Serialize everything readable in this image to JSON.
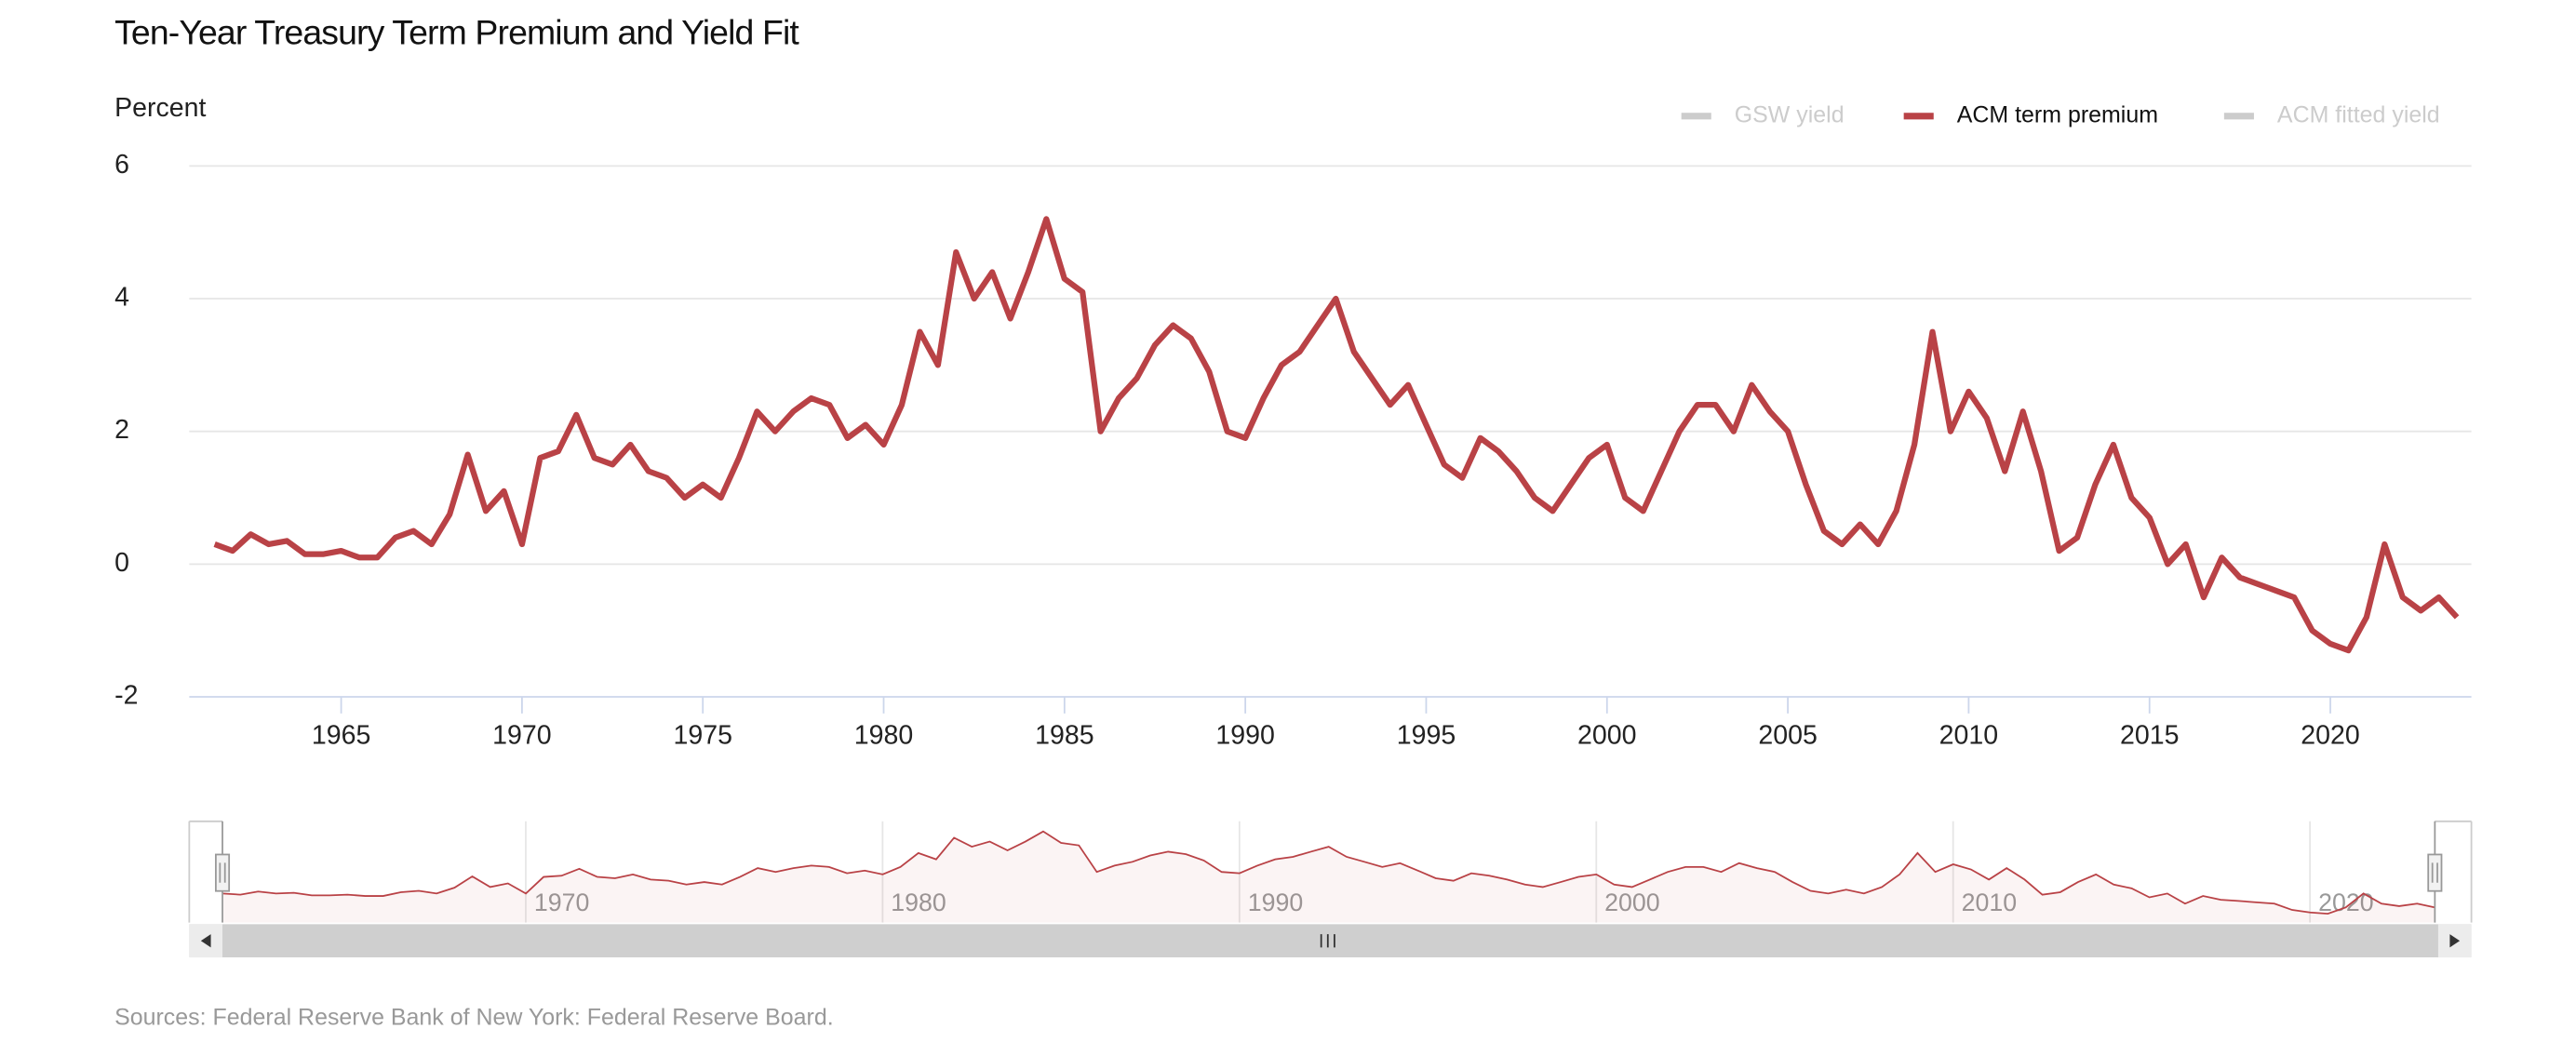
{
  "chart_data": {
    "type": "line",
    "title": "Ten-Year Treasury Term Premium and Yield Fit",
    "ylabel": "Percent",
    "source": "Sources: Federal Reserve Bank of New York: Federal Reserve Board.",
    "xlim": [
      1960.8,
      2023.9
    ],
    "xticks": [
      1965,
      1970,
      1975,
      1980,
      1985,
      1990,
      1995,
      2000,
      2005,
      2010,
      2015,
      2020
    ],
    "ylim": [
      -2,
      6
    ],
    "yticks": [
      -2,
      0,
      2,
      4,
      6
    ],
    "grid": true,
    "legend": "top-right",
    "navigator_xticks": [
      1970,
      1980,
      1990,
      2000,
      2010,
      2020
    ],
    "x": [
      1961.5,
      1962,
      1962.5,
      1963,
      1963.5,
      1964,
      1964.5,
      1965,
      1965.5,
      1966,
      1966.5,
      1967,
      1967.5,
      1968,
      1968.5,
      1969,
      1969.5,
      1970,
      1970.5,
      1971,
      1971.5,
      1972,
      1972.5,
      1973,
      1973.5,
      1974,
      1974.5,
      1975,
      1975.5,
      1976,
      1976.5,
      1977,
      1977.5,
      1978,
      1978.5,
      1979,
      1979.5,
      1980,
      1980.5,
      1981,
      1981.5,
      1982,
      1982.5,
      1983,
      1983.5,
      1984,
      1984.5,
      1985,
      1985.5,
      1986,
      1986.5,
      1987,
      1987.5,
      1988,
      1988.5,
      1989,
      1989.5,
      1990,
      1990.5,
      1991,
      1991.5,
      1992,
      1992.5,
      1993,
      1993.5,
      1994,
      1994.5,
      1995,
      1995.5,
      1996,
      1996.5,
      1997,
      1997.5,
      1998,
      1998.5,
      1999,
      1999.5,
      2000,
      2000.5,
      2001,
      2001.5,
      2002,
      2002.5,
      2003,
      2003.5,
      2004,
      2004.5,
      2005,
      2005.5,
      2006,
      2006.5,
      2007,
      2007.5,
      2008,
      2008.5,
      2009,
      2009.5,
      2010,
      2010.5,
      2011,
      2011.5,
      2012,
      2012.5,
      2013,
      2013.5,
      2014,
      2014.5,
      2015,
      2015.5,
      2016,
      2016.5,
      2017,
      2017.5,
      2018,
      2018.5,
      2019,
      2019.5,
      2020,
      2020.5,
      2021,
      2021.5,
      2022,
      2022.5,
      2023,
      2023.5
    ],
    "series": [
      {
        "name": "GSW yield",
        "color": "#cccccc",
        "visible": false
      },
      {
        "name": "ACM term premium",
        "color": "#b94246",
        "visible": true,
        "values": [
          0.3,
          0.2,
          0.45,
          0.3,
          0.35,
          0.15,
          0.15,
          0.2,
          0.1,
          0.1,
          0.4,
          0.5,
          0.3,
          0.75,
          1.65,
          0.8,
          1.1,
          0.3,
          1.6,
          1.7,
          2.25,
          1.6,
          1.5,
          1.8,
          1.4,
          1.3,
          1.0,
          1.2,
          1.0,
          1.6,
          2.3,
          2.0,
          2.3,
          2.5,
          2.4,
          1.9,
          2.1,
          1.8,
          2.4,
          3.5,
          3.0,
          4.7,
          4.0,
          4.4,
          3.7,
          4.4,
          5.2,
          4.3,
          4.1,
          2.0,
          2.5,
          2.8,
          3.3,
          3.6,
          3.4,
          2.9,
          2.0,
          1.9,
          2.5,
          3.0,
          3.2,
          3.6,
          4.0,
          3.2,
          2.8,
          2.4,
          2.7,
          2.1,
          1.5,
          1.3,
          1.9,
          1.7,
          1.4,
          1.0,
          0.8,
          1.2,
          1.6,
          1.8,
          1.0,
          0.8,
          1.4,
          2.0,
          2.4,
          2.4,
          2.0,
          2.7,
          2.3,
          2.0,
          1.2,
          0.5,
          0.3,
          0.6,
          0.3,
          0.8,
          1.8,
          3.5,
          2.0,
          2.6,
          2.2,
          1.4,
          2.3,
          1.4,
          0.2,
          0.4,
          1.2,
          1.8,
          1.0,
          0.7,
          0.0,
          0.3,
          -0.5,
          0.1,
          -0.2,
          -0.3,
          -0.4,
          -0.5,
          -1.0,
          -1.2,
          -1.3,
          -0.8,
          0.3,
          -0.5,
          -0.7,
          -0.5,
          -0.8
        ]
      },
      {
        "name": "ACM fitted yield",
        "color": "#cccccc",
        "visible": false
      }
    ]
  }
}
